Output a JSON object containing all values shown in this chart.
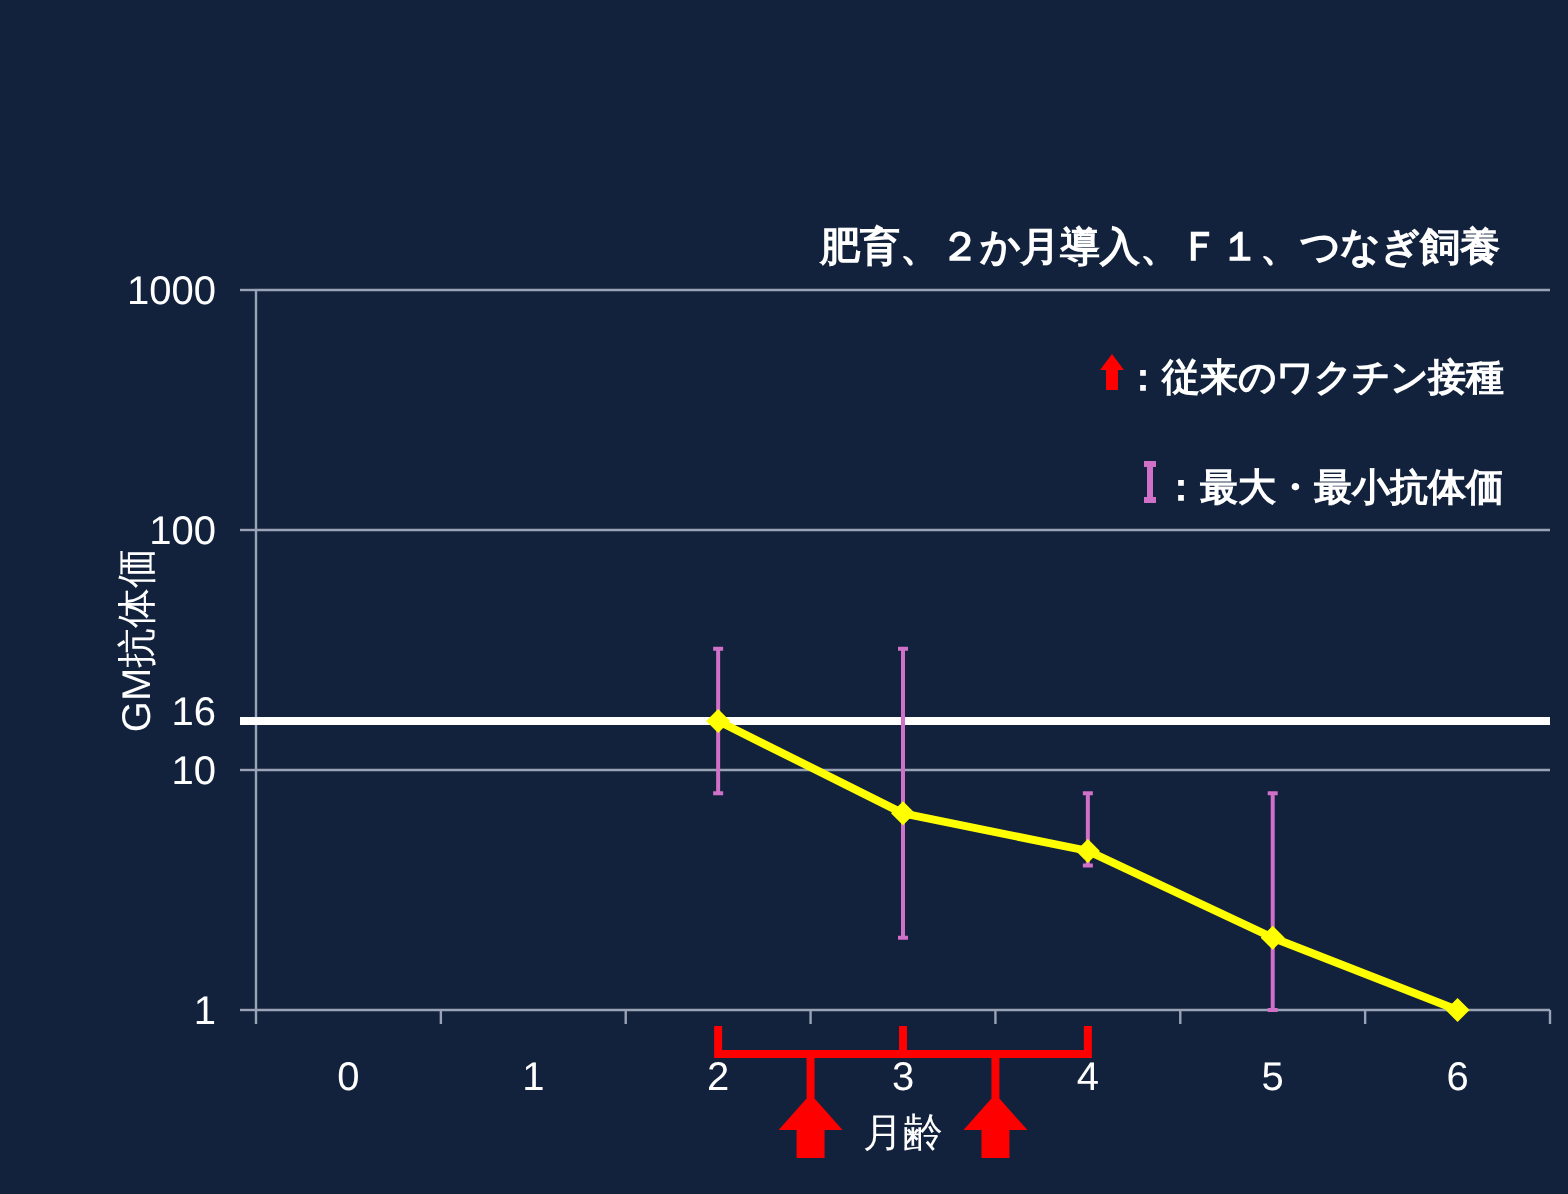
{
  "chart_data": {
    "type": "line",
    "title": "肥育、２か月導入、Ｆ１、つなぎ飼養",
    "xlabel": "月齢",
    "ylabel": "GM抗体価",
    "categories": [
      "0",
      "1",
      "2",
      "3",
      "4",
      "5",
      "6"
    ],
    "series": [
      {
        "color": "#ffff00",
        "values": [
          null,
          null,
          16,
          6.6,
          4.6,
          2,
          1
        ],
        "errors": [
          null,
          null,
          [
            8,
            32
          ],
          [
            2,
            32
          ],
          [
            4,
            8
          ],
          [
            1,
            8
          ],
          null
        ]
      }
    ],
    "log": "y",
    "ylim": [
      1,
      1000
    ],
    "yticks": [
      1,
      10,
      100,
      1000
    ],
    "grid": "y",
    "marker": "diamond",
    "ref_lines": [
      {
        "axis": "y",
        "value": 16,
        "label": "16",
        "color": "#ffffff"
      }
    ],
    "annotations": [
      "：従来のワクチン接種",
      "：最大・最小抗体価"
    ]
  }
}
